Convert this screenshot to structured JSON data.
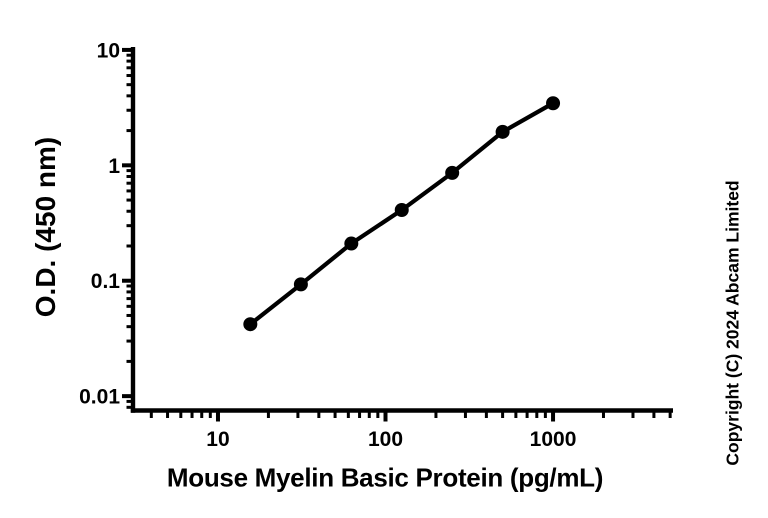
{
  "chart_data": {
    "type": "line",
    "title": "",
    "xlabel": "Mouse Myelin Basic Protein (pg/mL)",
    "ylabel": "O.D. (450 nm)",
    "x_scale": "log",
    "y_scale": "log",
    "xlim": [
      3.11,
      5200
    ],
    "ylim": [
      0.0072,
      10.6
    ],
    "grid": false,
    "legend": "none",
    "marker": "filled-circle",
    "line_color": "#000000",
    "marker_color": "#000000",
    "background_color": "#ffffff",
    "x_major_ticks": [
      {
        "value": 10,
        "label": "10"
      },
      {
        "value": 100,
        "label": "100"
      },
      {
        "value": 1000,
        "label": "1000"
      }
    ],
    "y_major_ticks": [
      {
        "value": 10,
        "label": "10"
      },
      {
        "value": 1,
        "label": "1"
      },
      {
        "value": 0.1,
        "label": "0.1"
      },
      {
        "value": 0.01,
        "label": "0.01"
      }
    ],
    "series": [
      {
        "name": "standard-curve",
        "x": [
          15.6,
          31.25,
          62.5,
          125,
          250,
          500,
          1000
        ],
        "y": [
          0.042,
          0.093,
          0.21,
          0.41,
          0.86,
          1.95,
          3.45
        ]
      }
    ]
  },
  "annotations": {
    "copyright": "Copyright (C) 2024 Abcam Limited"
  },
  "colors": {
    "background": "#ffffff",
    "foreground": "#000000"
  }
}
